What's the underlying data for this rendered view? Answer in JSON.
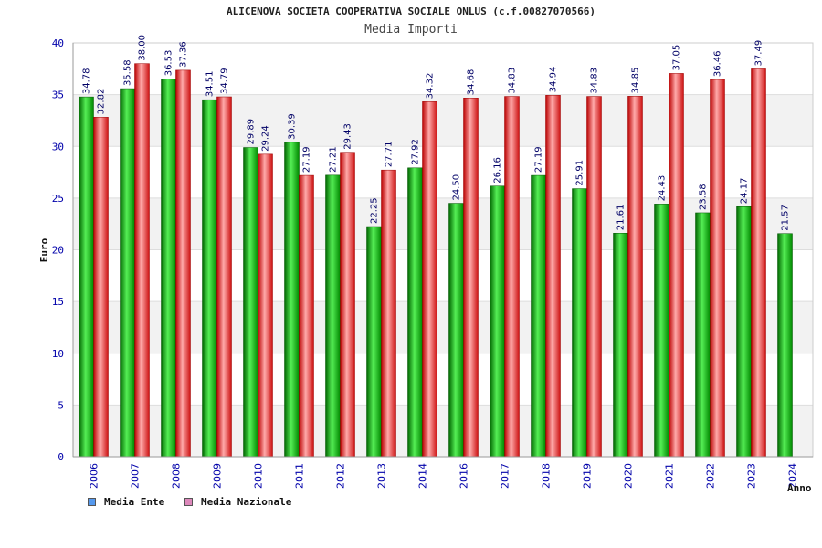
{
  "chart_data": {
    "type": "bar",
    "title": "ALICENOVA SOCIETA COOPERATIVA SOCIALE ONLUS (c.f.00827070566)",
    "subtitle": "Media Importi",
    "xlabel": "Anno",
    "ylabel": "Euro",
    "ylim": [
      0,
      40
    ],
    "yticks": [
      0,
      5,
      10,
      15,
      20,
      25,
      30,
      35,
      40
    ],
    "categories": [
      "2006",
      "2007",
      "2008",
      "2009",
      "2010",
      "2011",
      "2012",
      "2013",
      "2014",
      "2016",
      "2017",
      "2018",
      "2019",
      "2020",
      "2021",
      "2022",
      "2023",
      "2024"
    ],
    "series": [
      {
        "name": "Media Ente",
        "color": "#00aa00",
        "values": [
          34.78,
          35.58,
          36.53,
          34.51,
          29.89,
          30.39,
          27.21,
          22.25,
          27.92,
          24.5,
          26.16,
          27.19,
          25.91,
          21.61,
          24.43,
          23.58,
          24.17,
          21.57
        ],
        "labels": [
          "34.78",
          "35.58",
          "36.53",
          "34.51",
          "29.89",
          "30.39",
          "27.21",
          "22.25",
          "27.92",
          "24.50",
          "26.16",
          "27.19",
          "25.91",
          "21.61",
          "24.43",
          "23.58",
          "24.17",
          "21.57"
        ]
      },
      {
        "name": "Media Nazionale",
        "color": "#e8202a",
        "values": [
          32.82,
          38.0,
          37.36,
          34.79,
          29.24,
          27.19,
          29.43,
          27.71,
          34.32,
          34.68,
          34.83,
          34.94,
          34.83,
          34.85,
          37.05,
          36.46,
          37.49,
          null
        ],
        "labels": [
          "32.82",
          "38.00",
          "37.36",
          "34.79",
          "29.24",
          "27.19",
          "29.43",
          "27.71",
          "34.32",
          "34.68",
          "34.83",
          "34.94",
          "34.83",
          "34.85",
          "37.05",
          "36.46",
          "37.49",
          null
        ]
      }
    ],
    "legend": [
      {
        "label": "Media Ente",
        "color": "#5599ee"
      },
      {
        "label": "Media Nazionale",
        "color": "#dd88bb"
      }
    ],
    "grid": true,
    "legend_position": "bottom-left"
  }
}
